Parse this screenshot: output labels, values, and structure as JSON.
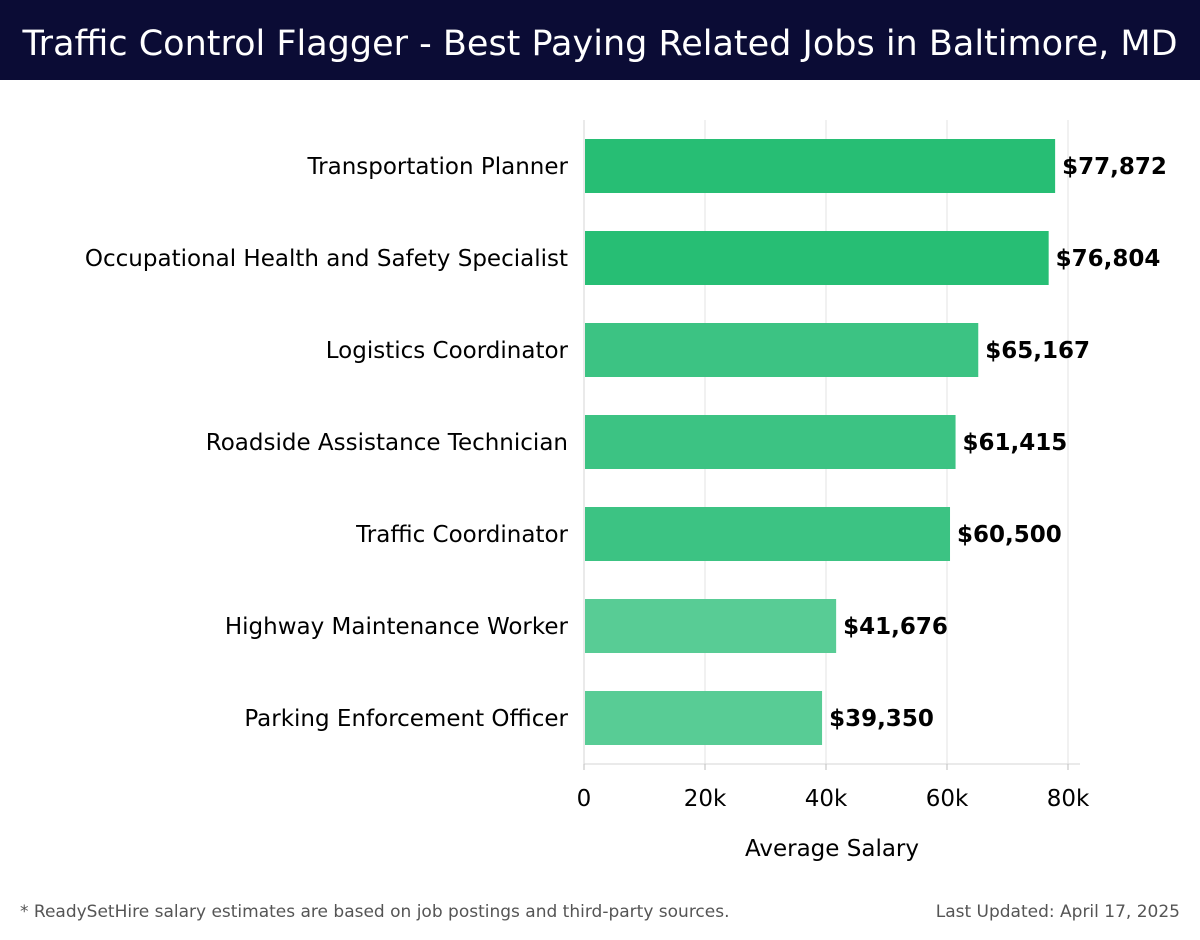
{
  "header": {
    "title": "Traffic Control Flagger - Best Paying Related Jobs in Baltimore, MD"
  },
  "footer": {
    "note": "* ReadySetHire salary estimates are based on job postings and third-party sources.",
    "updated": "Last Updated: April 17, 2025"
  },
  "colors": {
    "header_bg": "#0b0c35",
    "bar_dark": "#27be74",
    "bar_mid": "#3cc383",
    "bar_light": "#58cc95"
  },
  "chart_data": {
    "type": "bar",
    "orientation": "horizontal",
    "categories": [
      "Transportation Planner",
      "Occupational Health and Safety Specialist",
      "Logistics Coordinator",
      "Roadside Assistance Technician",
      "Traffic Coordinator",
      "Highway Maintenance Worker",
      "Parking Enforcement Officer"
    ],
    "values": [
      77872,
      76804,
      65167,
      61415,
      60500,
      41676,
      39350
    ],
    "value_labels": [
      "$77,872",
      "$76,804",
      "$65,167",
      "$61,415",
      "$60,500",
      "$41,676",
      "$39,350"
    ],
    "xlabel": "Average Salary",
    "ylabel": "",
    "xlim": [
      0,
      82000
    ],
    "xticks": [
      0,
      20000,
      40000,
      60000,
      80000
    ],
    "xtick_labels": [
      "0",
      "20k",
      "40k",
      "60k",
      "80k"
    ],
    "grid": true
  }
}
